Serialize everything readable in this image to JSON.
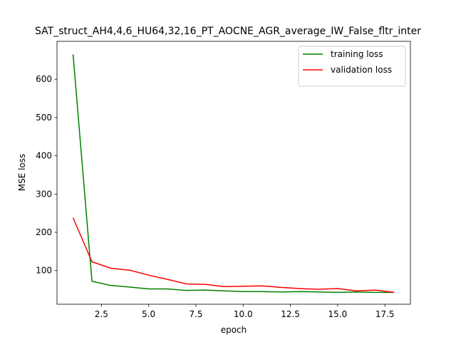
{
  "chart_data": {
    "type": "line",
    "title": "SAT_struct_AH4,4,6_HU64,32,16_PT_AOCNE_AGR_average_IW_False_fltr_inter",
    "xlabel": "epoch",
    "ylabel": "MSE loss",
    "xlim": [
      0.15,
      18.85
    ],
    "ylim": [
      12,
      699
    ],
    "xticks": [
      2.5,
      5.0,
      7.5,
      10.0,
      12.5,
      15.0,
      17.5
    ],
    "xtick_labels": [
      "2.5",
      "5.0",
      "7.5",
      "10.0",
      "12.5",
      "15.0",
      "17.5"
    ],
    "yticks": [
      100,
      200,
      300,
      400,
      500,
      600
    ],
    "ytick_labels": [
      "100",
      "200",
      "300",
      "400",
      "500",
      "600"
    ],
    "grid": false,
    "legend_position": "top-right",
    "x": [
      1,
      2,
      3,
      4,
      5,
      6,
      7,
      8,
      9,
      10,
      11,
      12,
      13,
      14,
      15,
      16,
      17,
      18
    ],
    "series": [
      {
        "name": "training loss",
        "color": "#008000",
        "values": [
          665,
          72,
          61,
          57,
          52,
          52,
          48,
          49,
          47,
          45,
          45,
          44,
          45,
          44,
          43,
          44,
          43,
          43
        ]
      },
      {
        "name": "validation loss",
        "color": "#ff0000",
        "values": [
          238,
          123,
          106,
          101,
          88,
          77,
          65,
          64,
          58,
          59,
          60,
          56,
          53,
          51,
          53,
          47,
          49,
          43
        ]
      }
    ]
  }
}
